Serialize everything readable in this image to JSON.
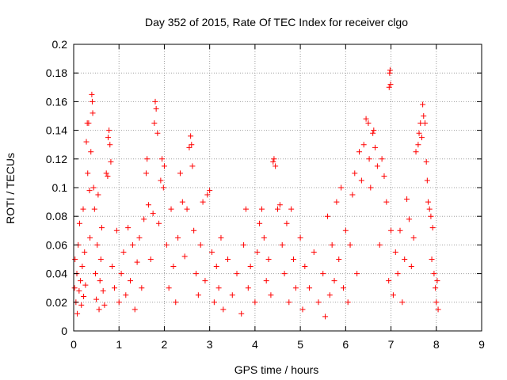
{
  "chart_data": {
    "type": "scatter",
    "title": "Day 352 of 2015, Rate Of TEC Index for receiver clgo",
    "xlabel": "GPS time / hours",
    "ylabel": "ROTI / TECUs",
    "xlim": [
      0,
      9
    ],
    "ylim": [
      0,
      0.2
    ],
    "xticks": [
      0,
      1,
      2,
      3,
      4,
      5,
      6,
      7,
      8,
      9
    ],
    "yticks": [
      0,
      0.02,
      0.04,
      0.06,
      0.08,
      0.1,
      0.12,
      0.14,
      0.16,
      0.18,
      0.2
    ],
    "xtick_labels": [
      "0",
      "1",
      "2",
      "3",
      "4",
      "5",
      "6",
      "7",
      "8",
      "9"
    ],
    "ytick_labels": [
      "0",
      "0.02",
      "0.04",
      "0.06",
      "0.08",
      "0.1",
      "0.12",
      "0.14",
      "0.16",
      "0.18",
      "0.2"
    ],
    "grid": true,
    "marker": "+",
    "color": "#ff0000",
    "series": [
      {
        "name": "ROTI",
        "points": [
          [
            0.02,
            0.03
          ],
          [
            0.03,
            0.05
          ],
          [
            0.05,
            0.02
          ],
          [
            0.07,
            0.04
          ],
          [
            0.08,
            0.012
          ],
          [
            0.1,
            0.06
          ],
          [
            0.12,
            0.028
          ],
          [
            0.13,
            0.075
          ],
          [
            0.15,
            0.035
          ],
          [
            0.17,
            0.018
          ],
          [
            0.19,
            0.045
          ],
          [
            0.21,
            0.085
          ],
          [
            0.22,
            0.024
          ],
          [
            0.24,
            0.055
          ],
          [
            0.26,
            0.032
          ],
          [
            0.28,
            0.132
          ],
          [
            0.3,
            0.145
          ],
          [
            0.31,
            0.11
          ],
          [
            0.33,
            0.145
          ],
          [
            0.35,
            0.098
          ],
          [
            0.36,
            0.065
          ],
          [
            0.38,
            0.125
          ],
          [
            0.4,
            0.165
          ],
          [
            0.41,
            0.16
          ],
          [
            0.42,
            0.152
          ],
          [
            0.44,
            0.1
          ],
          [
            0.46,
            0.085
          ],
          [
            0.48,
            0.04
          ],
          [
            0.5,
            0.022
          ],
          [
            0.52,
            0.06
          ],
          [
            0.54,
            0.095
          ],
          [
            0.56,
            0.015
          ],
          [
            0.58,
            0.035
          ],
          [
            0.6,
            0.05
          ],
          [
            0.62,
            0.072
          ],
          [
            0.65,
            0.028
          ],
          [
            0.68,
            0.018
          ],
          [
            0.72,
            0.11
          ],
          [
            0.75,
            0.108
          ],
          [
            0.76,
            0.135
          ],
          [
            0.78,
            0.14
          ],
          [
            0.8,
            0.13
          ],
          [
            0.82,
            0.118
          ],
          [
            0.85,
            0.045
          ],
          [
            0.9,
            0.03
          ],
          [
            0.95,
            0.07
          ],
          [
            1.0,
            0.02
          ],
          [
            1.05,
            0.04
          ],
          [
            1.1,
            0.055
          ],
          [
            1.15,
            0.025
          ],
          [
            1.2,
            0.072
          ],
          [
            1.25,
            0.035
          ],
          [
            1.3,
            0.06
          ],
          [
            1.35,
            0.015
          ],
          [
            1.4,
            0.048
          ],
          [
            1.45,
            0.065
          ],
          [
            1.5,
            0.03
          ],
          [
            1.55,
            0.078
          ],
          [
            1.6,
            0.11
          ],
          [
            1.62,
            0.12
          ],
          [
            1.65,
            0.088
          ],
          [
            1.7,
            0.05
          ],
          [
            1.75,
            0.082
          ],
          [
            1.78,
            0.145
          ],
          [
            1.8,
            0.16
          ],
          [
            1.82,
            0.155
          ],
          [
            1.85,
            0.138
          ],
          [
            1.88,
            0.075
          ],
          [
            1.92,
            0.105
          ],
          [
            1.95,
            0.12
          ],
          [
            1.98,
            0.1
          ],
          [
            2.0,
            0.115
          ],
          [
            2.05,
            0.06
          ],
          [
            2.1,
            0.03
          ],
          [
            2.15,
            0.085
          ],
          [
            2.2,
            0.045
          ],
          [
            2.25,
            0.02
          ],
          [
            2.3,
            0.065
          ],
          [
            2.35,
            0.11
          ],
          [
            2.4,
            0.09
          ],
          [
            2.45,
            0.052
          ],
          [
            2.5,
            0.085
          ],
          [
            2.55,
            0.128
          ],
          [
            2.58,
            0.136
          ],
          [
            2.6,
            0.13
          ],
          [
            2.62,
            0.115
          ],
          [
            2.65,
            0.07
          ],
          [
            2.7,
            0.04
          ],
          [
            2.75,
            0.025
          ],
          [
            2.8,
            0.06
          ],
          [
            2.85,
            0.09
          ],
          [
            2.9,
            0.035
          ],
          [
            2.95,
            0.095
          ],
          [
            3.0,
            0.098
          ],
          [
            3.05,
            0.055
          ],
          [
            3.1,
            0.02
          ],
          [
            3.15,
            0.045
          ],
          [
            3.2,
            0.03
          ],
          [
            3.25,
            0.065
          ],
          [
            3.3,
            0.015
          ],
          [
            3.4,
            0.05
          ],
          [
            3.5,
            0.025
          ],
          [
            3.6,
            0.04
          ],
          [
            3.7,
            0.012
          ],
          [
            3.75,
            0.06
          ],
          [
            3.8,
            0.085
          ],
          [
            3.85,
            0.03
          ],
          [
            3.9,
            0.045
          ],
          [
            4.0,
            0.02
          ],
          [
            4.05,
            0.055
          ],
          [
            4.1,
            0.075
          ],
          [
            4.15,
            0.085
          ],
          [
            4.2,
            0.065
          ],
          [
            4.25,
            0.035
          ],
          [
            4.3,
            0.05
          ],
          [
            4.35,
            0.025
          ],
          [
            4.4,
            0.118
          ],
          [
            4.42,
            0.12
          ],
          [
            4.45,
            0.115
          ],
          [
            4.5,
            0.085
          ],
          [
            4.55,
            0.088
          ],
          [
            4.6,
            0.06
          ],
          [
            4.65,
            0.04
          ],
          [
            4.7,
            0.075
          ],
          [
            4.75,
            0.02
          ],
          [
            4.8,
            0.085
          ],
          [
            4.85,
            0.05
          ],
          [
            4.9,
            0.03
          ],
          [
            5.0,
            0.065
          ],
          [
            5.05,
            0.015
          ],
          [
            5.1,
            0.045
          ],
          [
            5.2,
            0.03
          ],
          [
            5.3,
            0.055
          ],
          [
            5.4,
            0.02
          ],
          [
            5.5,
            0.04
          ],
          [
            5.55,
            0.01
          ],
          [
            5.6,
            0.08
          ],
          [
            5.65,
            0.025
          ],
          [
            5.7,
            0.06
          ],
          [
            5.75,
            0.035
          ],
          [
            5.8,
            0.09
          ],
          [
            5.85,
            0.05
          ],
          [
            5.9,
            0.1
          ],
          [
            5.95,
            0.03
          ],
          [
            6.0,
            0.07
          ],
          [
            6.05,
            0.02
          ],
          [
            6.1,
            0.06
          ],
          [
            6.15,
            0.095
          ],
          [
            6.2,
            0.11
          ],
          [
            6.25,
            0.04
          ],
          [
            6.3,
            0.125
          ],
          [
            6.35,
            0.105
          ],
          [
            6.4,
            0.13
          ],
          [
            6.45,
            0.148
          ],
          [
            6.5,
            0.145
          ],
          [
            6.52,
            0.12
          ],
          [
            6.55,
            0.1
          ],
          [
            6.6,
            0.138
          ],
          [
            6.62,
            0.14
          ],
          [
            6.65,
            0.128
          ],
          [
            6.7,
            0.115
          ],
          [
            6.75,
            0.06
          ],
          [
            6.8,
            0.12
          ],
          [
            6.85,
            0.108
          ],
          [
            6.9,
            0.09
          ],
          [
            6.95,
            0.035
          ],
          [
            6.96,
            0.17
          ],
          [
            6.97,
            0.18
          ],
          [
            6.98,
            0.182
          ],
          [
            6.99,
            0.172
          ],
          [
            7.0,
            0.07
          ],
          [
            7.05,
            0.025
          ],
          [
            7.1,
            0.055
          ],
          [
            7.15,
            0.04
          ],
          [
            7.2,
            0.07
          ],
          [
            7.25,
            0.02
          ],
          [
            7.3,
            0.05
          ],
          [
            7.35,
            0.092
          ],
          [
            7.4,
            0.078
          ],
          [
            7.45,
            0.045
          ],
          [
            7.5,
            0.065
          ],
          [
            7.55,
            0.125
          ],
          [
            7.6,
            0.13
          ],
          [
            7.62,
            0.138
          ],
          [
            7.65,
            0.145
          ],
          [
            7.68,
            0.135
          ],
          [
            7.7,
            0.158
          ],
          [
            7.72,
            0.15
          ],
          [
            7.75,
            0.145
          ],
          [
            7.78,
            0.118
          ],
          [
            7.8,
            0.105
          ],
          [
            7.82,
            0.09
          ],
          [
            7.85,
            0.085
          ],
          [
            7.88,
            0.08
          ],
          [
            7.9,
            0.05
          ],
          [
            7.92,
            0.072
          ],
          [
            7.95,
            0.04
          ],
          [
            7.98,
            0.03
          ],
          [
            8.0,
            0.02
          ],
          [
            8.02,
            0.035
          ],
          [
            8.04,
            0.015
          ]
        ]
      }
    ]
  }
}
